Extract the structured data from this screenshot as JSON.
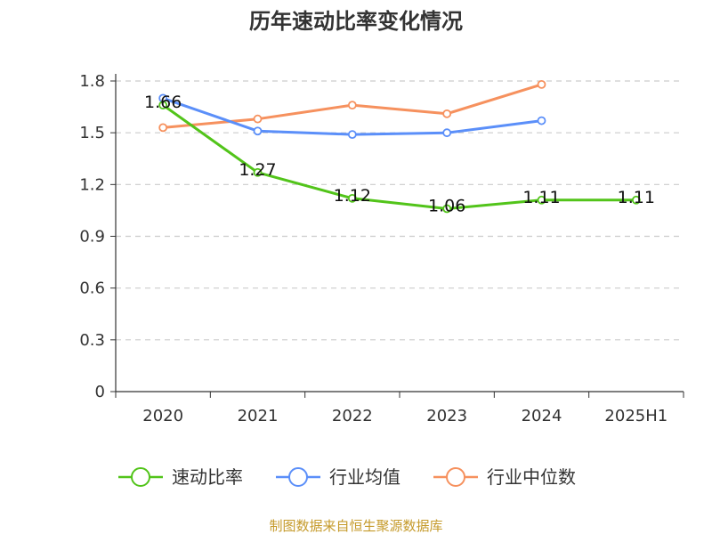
{
  "chart_data": {
    "type": "line",
    "title": "历年速动比率变化情况",
    "categories": [
      "2020",
      "2021",
      "2022",
      "2023",
      "2024",
      "2025H1"
    ],
    "yticks": [
      "0",
      "0.3",
      "0.6",
      "0.9",
      "1.2",
      "1.5",
      "1.8"
    ],
    "ylim": [
      0,
      1.8
    ],
    "grid": true,
    "legend_position": "bottom",
    "series": [
      {
        "name": "速动比率",
        "color": "#52c41a",
        "values": [
          1.66,
          1.27,
          1.12,
          1.06,
          1.11,
          1.11
        ],
        "labels": [
          "1.66",
          "1.27",
          "1.12",
          "1.06",
          "1.11",
          "1.11"
        ]
      },
      {
        "name": "行业均值",
        "color": "#5b8ff9",
        "values": [
          1.7,
          1.51,
          1.49,
          1.5,
          1.57,
          null
        ]
      },
      {
        "name": "行业中位数",
        "color": "#f6915e",
        "values": [
          1.53,
          1.58,
          1.66,
          1.61,
          1.78,
          null
        ]
      }
    ]
  },
  "footer": {
    "source": "制图数据来自恒生聚源数据库"
  }
}
